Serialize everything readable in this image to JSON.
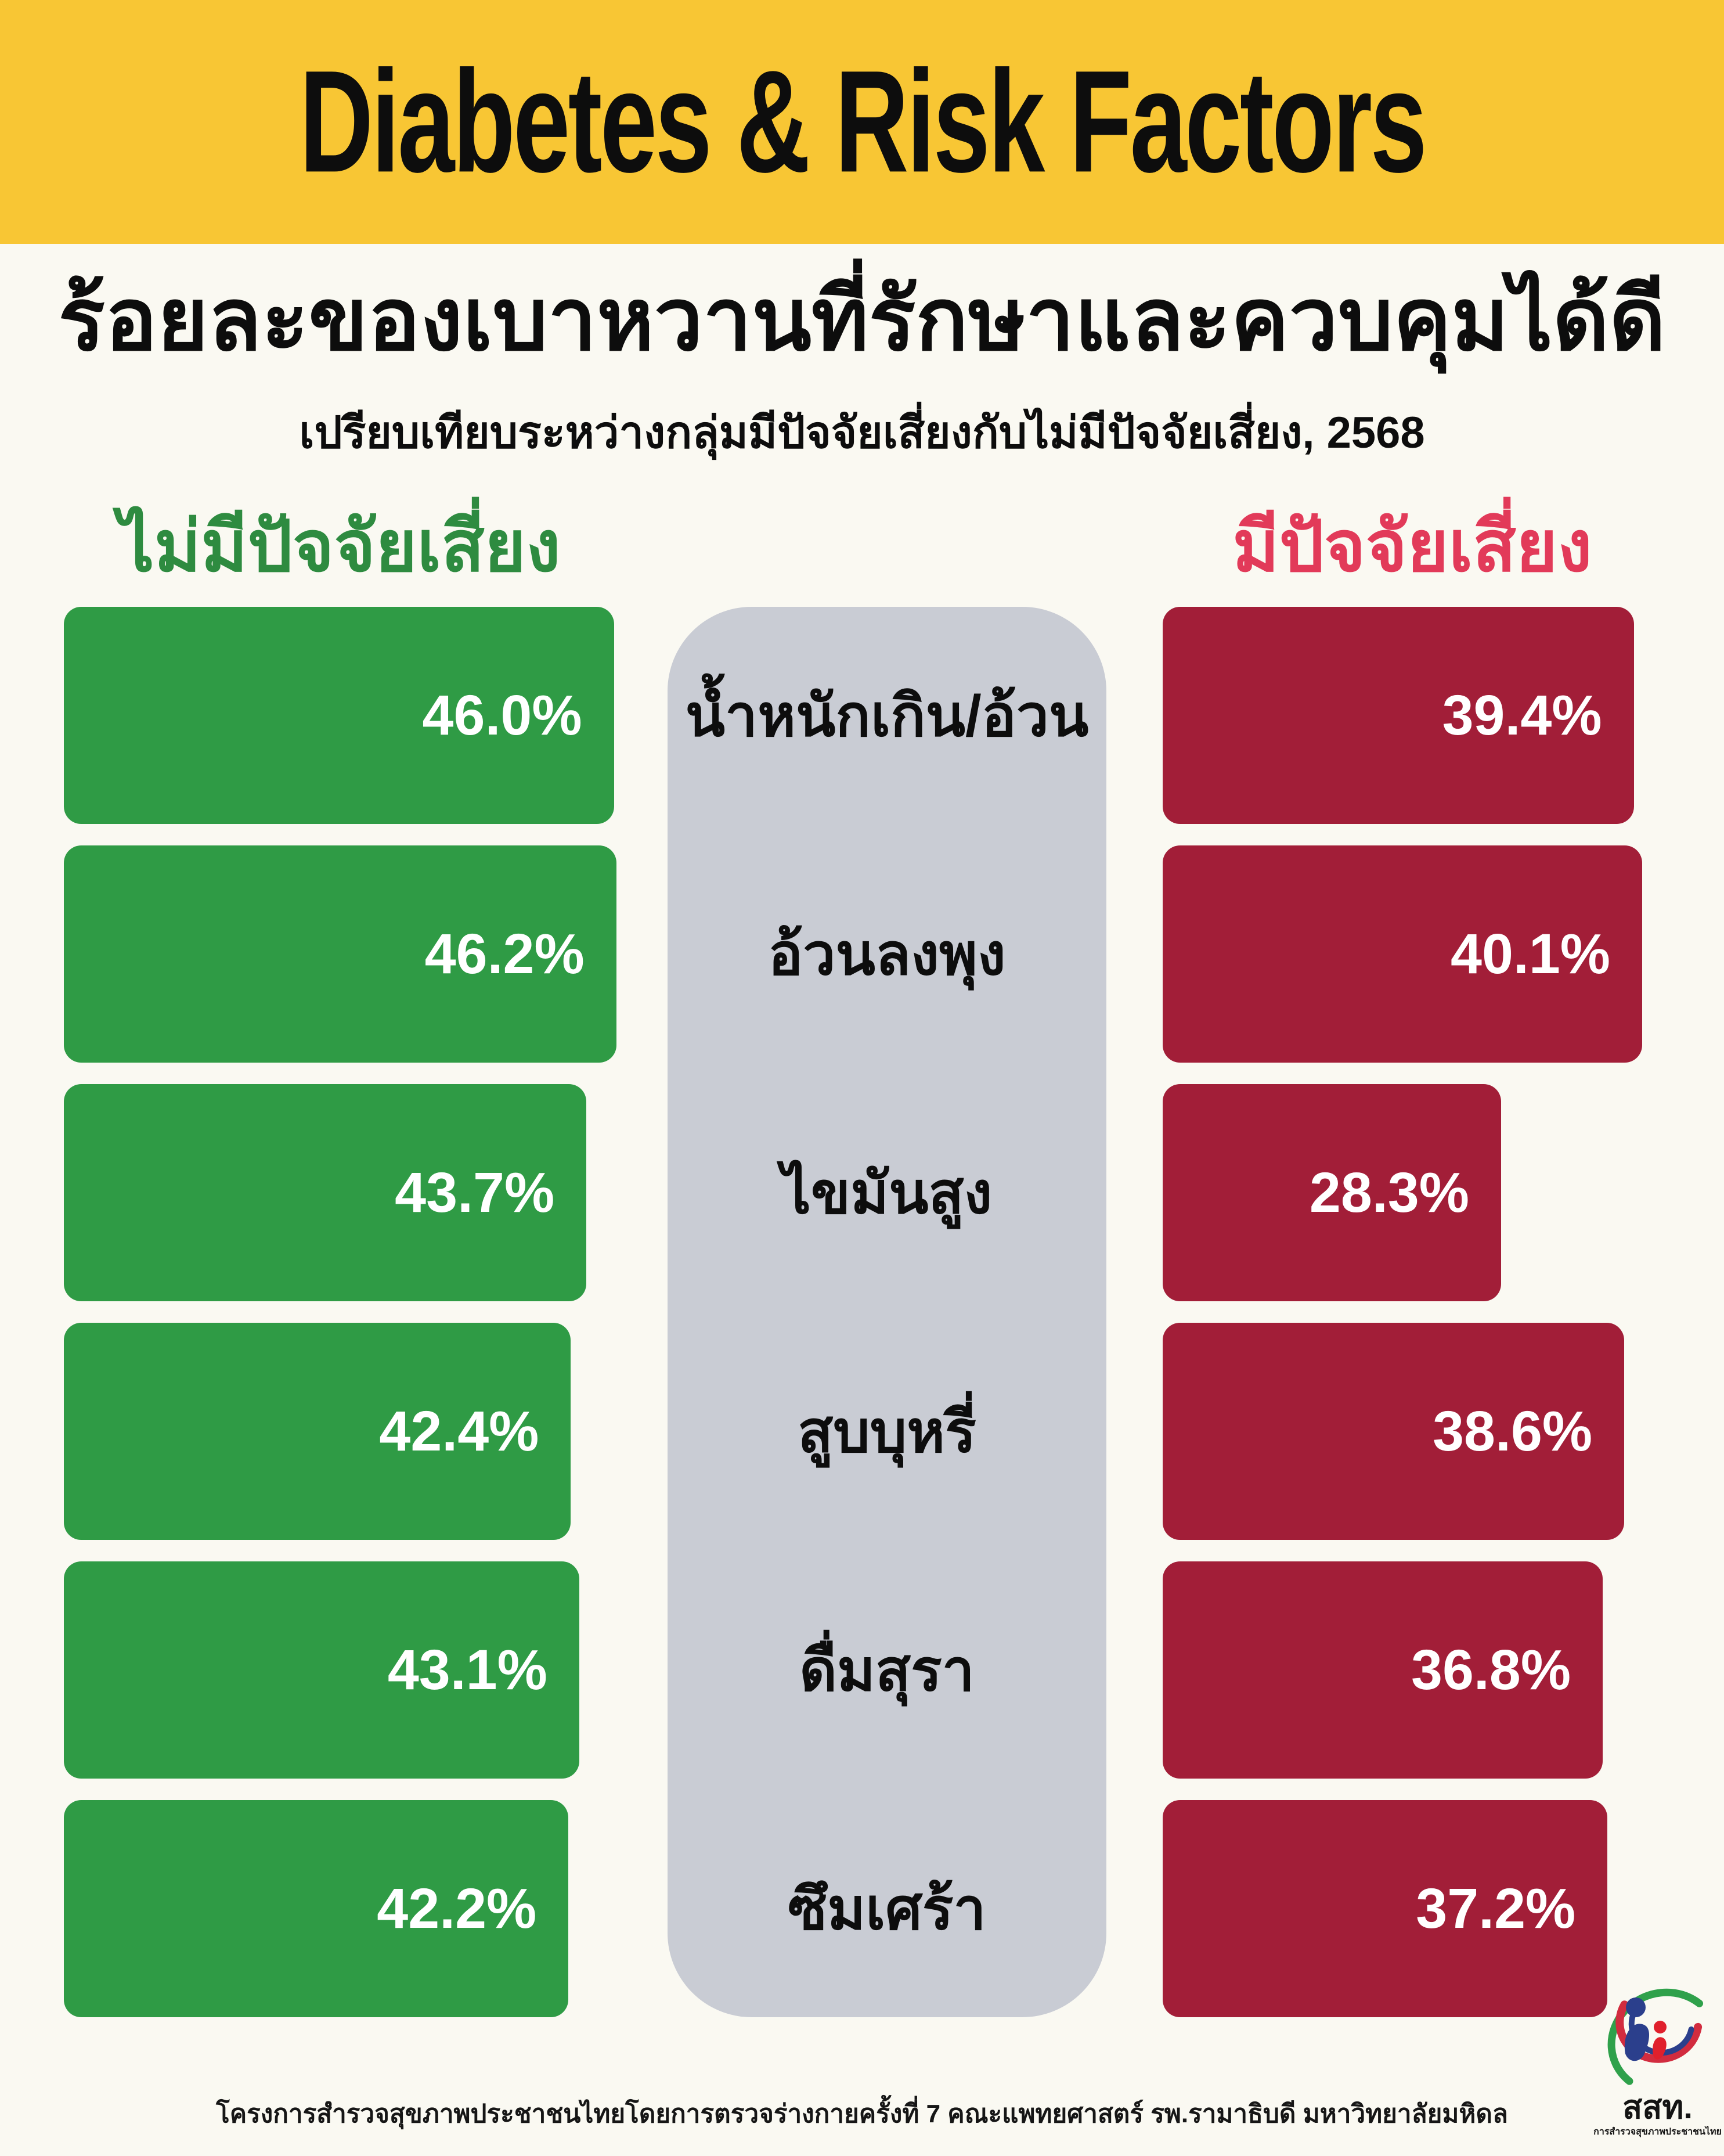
{
  "banner": {
    "title": "Diabetes & Risk Factors",
    "bg_color": "#F8C634"
  },
  "title": "ร้อยละของเบาหวานที่รักษาและควบคุมได้ดี",
  "subtitle": "เปรียบเทียบระหว่างกลุ่มมีปัจจัยเสี่ยงกับไม่มีปัจจัยเสี่ยง, 2568",
  "legend": {
    "left": "ไม่มีปัจจัยเสี่ยง",
    "right": "มีปัจจัยเสี่ยง"
  },
  "chart_data": {
    "type": "bar",
    "orientation": "horizontal-mirrored-comparison",
    "categories": [
      "น้ำหนักเกิน/อ้วน",
      "อ้วนลงพุง",
      "ไขมันสูง",
      "สูบบุหรี่",
      "ดื่มสุรา",
      "ซึมเศร้า"
    ],
    "series": [
      {
        "name": "ไม่มีปัจจัยเสี่ยง",
        "color": "#2F9B45",
        "values": [
          46.0,
          46.2,
          43.7,
          42.4,
          43.1,
          42.2
        ]
      },
      {
        "name": "มีปัจจัยเสี่ยง",
        "color": "#A21E38",
        "values": [
          39.4,
          40.1,
          28.3,
          38.6,
          36.8,
          37.2
        ]
      }
    ],
    "value_suffix": "%",
    "value_decimals": 1,
    "xlim": [
      0,
      48.8
    ],
    "grid": false,
    "legend_position": "above-columns",
    "category_column_color": "#C9CCD4"
  },
  "footer": "โครงการสำรวจสุขภาพประชาชนไทยโดยการตรวจร่างกายครั้งที่ 7 คณะแพทยศาสตร์ รพ.รามาธิบดี  มหาวิทยาลัยมหิดล",
  "logo": {
    "abbr": "สสท.",
    "caption": "การสำรวจสุขภาพประชาชนไทย"
  },
  "colors": {
    "background": "#FAF9F2",
    "banner_yellow": "#F8C634",
    "green_bar": "#2F9B45",
    "green_header": "#2E8B40",
    "red_bar": "#A21E38",
    "red_header": "#E23A59",
    "center_column_gray": "#C9CCD4",
    "text_black": "#0D0D0D"
  }
}
